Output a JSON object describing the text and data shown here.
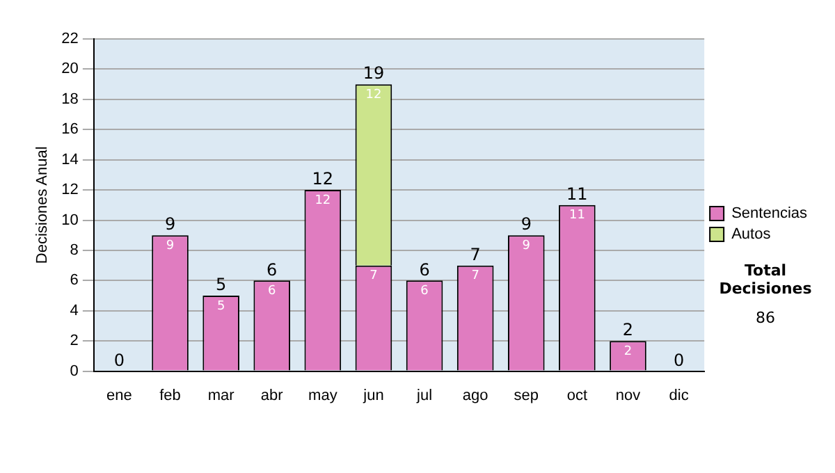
{
  "chart_data": {
    "type": "bar",
    "stacked": true,
    "ylabel": "Decisiones Anual",
    "categories": [
      "ene",
      "feb",
      "mar",
      "abr",
      "may",
      "jun",
      "jul",
      "ago",
      "sep",
      "oct",
      "nov",
      "dic"
    ],
    "series": [
      {
        "name": "Sentencias",
        "color": "#e07cc0",
        "values": [
          0,
          9,
          5,
          6,
          12,
          7,
          6,
          7,
          9,
          11,
          2,
          0
        ],
        "value_labels": [
          null,
          "9",
          "5",
          "6",
          "12",
          "7",
          "6",
          "7",
          "9",
          "11",
          "2",
          null
        ]
      },
      {
        "name": "Autos",
        "color": "#cce48c",
        "values": [
          null,
          null,
          null,
          null,
          null,
          12,
          null,
          null,
          null,
          null,
          null,
          null
        ],
        "value_labels": [
          null,
          null,
          null,
          null,
          null,
          "12",
          null,
          null,
          null,
          null,
          null,
          null
        ]
      }
    ],
    "ylim": [
      0,
      22
    ],
    "yticks": [
      0,
      2,
      4,
      6,
      8,
      10,
      12,
      14,
      16,
      18,
      20,
      22
    ],
    "grid": "y",
    "legend": "right",
    "totals": [
      "0",
      "9",
      "5",
      "6",
      "12",
      "19",
      "6",
      "7",
      "9",
      "11",
      "2",
      "0"
    ],
    "annotations": [
      "Total Decisiones",
      "86"
    ]
  }
}
